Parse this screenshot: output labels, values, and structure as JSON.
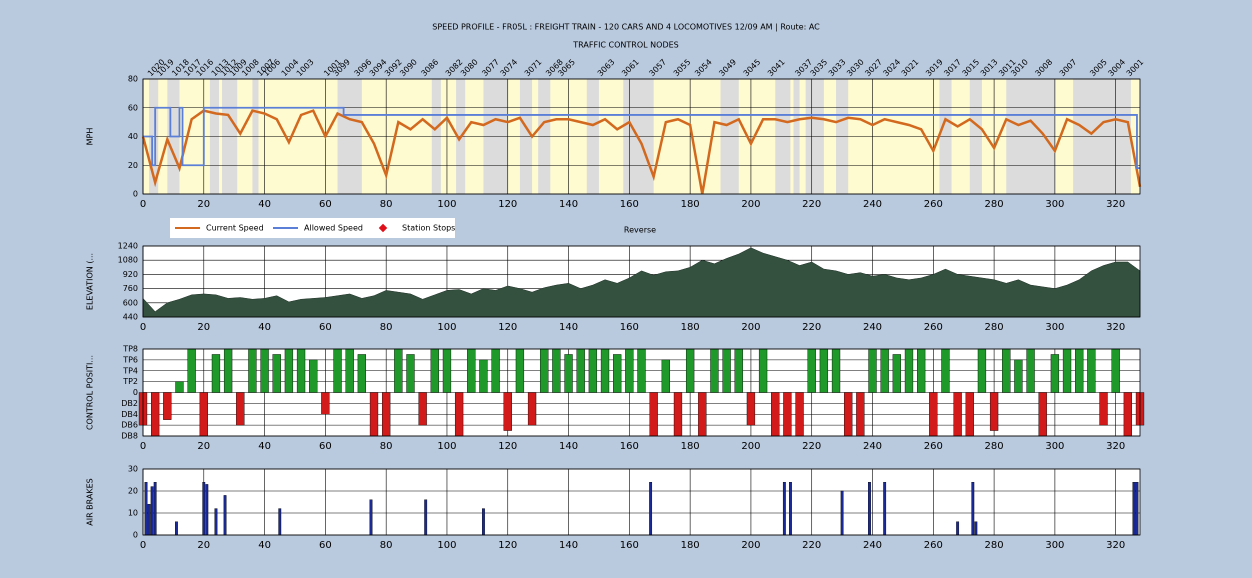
{
  "chart_data": [
    {
      "type": "line",
      "title": "SPEED PROFILE - FR05L : FREIGHT TRAIN - 120 CARS AND 4 LOCOMOTIVES 12/09 AM | Route: AC",
      "subtitle": "TRAFFIC CONTROL NODES",
      "ylabel": "MPH",
      "xlabel": "Reverse",
      "xlim": [
        0,
        328
      ],
      "xticks": [
        0,
        20,
        40,
        60,
        80,
        100,
        120,
        140,
        160,
        180,
        200,
        220,
        240,
        260,
        280,
        300,
        320
      ],
      "ylim": [
        0,
        80
      ],
      "yticks": [
        0,
        20,
        40,
        60,
        80
      ],
      "grid": true,
      "nodes": {
        "labels": [
          "1020",
          "1019",
          "1018",
          "1017",
          "1016",
          "1013",
          "1012",
          "1009",
          "1008",
          "1007",
          "1006",
          "1004",
          "1003",
          "1001",
          "3099",
          "3096",
          "3094",
          "3092",
          "3090",
          "3086",
          "3082",
          "3080",
          "3077",
          "3074",
          "3071",
          "3068",
          "3065",
          "3063",
          "3061",
          "3057",
          "3055",
          "3054",
          "3049",
          "3045",
          "3041",
          "3037",
          "3035",
          "3033",
          "3030",
          "3027",
          "3024",
          "3021",
          "3019",
          "3017",
          "3015",
          "3013",
          "3011",
          "3010",
          "3008",
          "3007",
          "3005",
          "3004",
          "3001"
        ],
        "x": [
          2,
          5,
          10,
          14,
          18,
          23,
          26,
          29,
          33,
          38,
          40,
          46,
          51,
          60,
          63,
          70,
          75,
          80,
          85,
          92,
          100,
          105,
          112,
          118,
          126,
          133,
          137,
          150,
          158,
          167,
          175,
          182,
          190,
          198,
          206,
          215,
          220,
          226,
          232,
          238,
          244,
          250,
          258,
          264,
          270,
          276,
          282,
          286,
          294,
          302,
          312,
          318,
          324
        ]
      },
      "gray_bands": [
        [
          2,
          5
        ],
        [
          8,
          12
        ],
        [
          22,
          25
        ],
        [
          26,
          31
        ],
        [
          36,
          38
        ],
        [
          64,
          72
        ],
        [
          95,
          98
        ],
        [
          103,
          106
        ],
        [
          112,
          120
        ],
        [
          124,
          128
        ],
        [
          130,
          134
        ],
        [
          146,
          150
        ],
        [
          158,
          168
        ],
        [
          190,
          196
        ],
        [
          208,
          213
        ],
        [
          214,
          216
        ],
        [
          218,
          224
        ],
        [
          228,
          232
        ],
        [
          262,
          266
        ],
        [
          272,
          276
        ],
        [
          284,
          300
        ],
        [
          306,
          325
        ]
      ],
      "series": [
        {
          "name": "Current Speed",
          "color": "#d2691e",
          "x": [
            0,
            4,
            8,
            12,
            16,
            20,
            24,
            28,
            32,
            36,
            40,
            44,
            48,
            52,
            56,
            60,
            64,
            68,
            72,
            76,
            80,
            84,
            88,
            92,
            96,
            100,
            104,
            108,
            112,
            116,
            120,
            124,
            128,
            132,
            136,
            140,
            144,
            148,
            152,
            156,
            160,
            164,
            168,
            172,
            176,
            180,
            184,
            188,
            192,
            196,
            200,
            204,
            208,
            212,
            216,
            220,
            224,
            228,
            232,
            236,
            240,
            244,
            248,
            252,
            256,
            260,
            264,
            268,
            272,
            276,
            280,
            284,
            288,
            292,
            296,
            300,
            304,
            308,
            312,
            316,
            320,
            324,
            328
          ],
          "values": [
            40,
            8,
            38,
            18,
            52,
            58,
            56,
            55,
            42,
            58,
            56,
            52,
            36,
            55,
            58,
            40,
            56,
            52,
            50,
            35,
            13,
            50,
            45,
            52,
            45,
            53,
            38,
            50,
            48,
            52,
            50,
            53,
            40,
            50,
            52,
            52,
            50,
            48,
            52,
            45,
            50,
            35,
            12,
            50,
            52,
            48,
            0,
            50,
            48,
            52,
            35,
            52,
            52,
            50,
            52,
            53,
            52,
            50,
            53,
            52,
            48,
            52,
            50,
            48,
            45,
            30,
            52,
            47,
            52,
            45,
            32,
            52,
            48,
            51,
            42,
            30,
            52,
            48,
            42,
            50,
            52,
            50,
            5
          ]
        },
        {
          "name": "Allowed Speed",
          "color": "#5b7fd6",
          "x": [
            0,
            3,
            3,
            4,
            4,
            9,
            9,
            12,
            12,
            13,
            13,
            20,
            20,
            66,
            66,
            327,
            327,
            328
          ],
          "values": [
            40,
            40,
            20,
            20,
            60,
            60,
            40,
            40,
            60,
            60,
            20,
            20,
            60,
            60,
            55,
            55,
            18,
            18
          ]
        },
        {
          "name": "Station Stops",
          "color": "#e0101a",
          "x": [],
          "values": []
        }
      ]
    },
    {
      "type": "area",
      "ylabel": "ELEVATION (...",
      "color": "#34503f",
      "xlim": [
        0,
        328
      ],
      "xticks": [
        0,
        20,
        40,
        60,
        80,
        100,
        120,
        140,
        160,
        180,
        200,
        220,
        240,
        260,
        280,
        300,
        320
      ],
      "ylim": [
        440,
        1240
      ],
      "yticks": [
        440,
        600,
        760,
        920,
        1080,
        1240
      ],
      "grid": true,
      "x": [
        0,
        4,
        8,
        12,
        16,
        20,
        24,
        28,
        32,
        36,
        40,
        44,
        48,
        52,
        56,
        60,
        64,
        68,
        72,
        76,
        80,
        84,
        88,
        92,
        96,
        100,
        104,
        108,
        112,
        116,
        120,
        124,
        128,
        132,
        136,
        140,
        144,
        148,
        152,
        156,
        160,
        164,
        168,
        172,
        176,
        180,
        184,
        188,
        192,
        196,
        200,
        204,
        208,
        212,
        216,
        220,
        224,
        228,
        232,
        236,
        240,
        244,
        248,
        252,
        256,
        260,
        264,
        268,
        272,
        276,
        280,
        284,
        288,
        292,
        296,
        300,
        304,
        308,
        312,
        316,
        320,
        324,
        328
      ],
      "values": [
        650,
        500,
        600,
        640,
        690,
        700,
        690,
        650,
        660,
        640,
        650,
        680,
        610,
        640,
        650,
        660,
        680,
        700,
        650,
        680,
        740,
        720,
        700,
        640,
        690,
        740,
        750,
        700,
        760,
        740,
        790,
        760,
        720,
        770,
        800,
        820,
        760,
        800,
        860,
        820,
        880,
        960,
        910,
        950,
        960,
        1000,
        1080,
        1040,
        1100,
        1150,
        1220,
        1160,
        1120,
        1080,
        1020,
        1060,
        980,
        960,
        920,
        940,
        900,
        920,
        880,
        860,
        880,
        920,
        980,
        920,
        900,
        880,
        860,
        820,
        860,
        800,
        780,
        760,
        800,
        860,
        960,
        1020,
        1060,
        1060,
        960
      ]
    },
    {
      "type": "bar",
      "ylabel": "CONTROL POSITI...",
      "color": "#1f9a2a",
      "negative_color": "#d21a1a",
      "xlim": [
        0,
        328
      ],
      "xticks": [
        0,
        20,
        40,
        60,
        80,
        100,
        120,
        140,
        160,
        180,
        200,
        220,
        240,
        260,
        280,
        300,
        320
      ],
      "ylim": [
        -8,
        8
      ],
      "grid": true,
      "yticks": [
        {
          "value": 8,
          "label": "TP8"
        },
        {
          "value": 6,
          "label": "TP6"
        },
        {
          "value": 4,
          "label": "TP4"
        },
        {
          "value": 2,
          "label": "TP2"
        },
        0,
        {
          "value": -2,
          "label": "DB2"
        },
        {
          "value": -4,
          "label": "DB4"
        },
        {
          "value": -6,
          "label": "DB6"
        },
        {
          "value": -8,
          "label": "DB8"
        }
      ],
      "x": [
        0,
        4,
        8,
        12,
        16,
        20,
        24,
        28,
        32,
        36,
        40,
        44,
        48,
        52,
        56,
        60,
        64,
        68,
        72,
        76,
        80,
        84,
        88,
        92,
        96,
        100,
        104,
        108,
        112,
        116,
        120,
        124,
        128,
        132,
        136,
        140,
        144,
        148,
        152,
        156,
        160,
        164,
        168,
        172,
        176,
        180,
        184,
        188,
        192,
        196,
        200,
        204,
        208,
        212,
        216,
        220,
        224,
        228,
        232,
        236,
        240,
        244,
        248,
        252,
        256,
        260,
        264,
        268,
        272,
        276,
        280,
        284,
        288,
        292,
        296,
        300,
        304,
        308,
        312,
        316,
        320,
        324,
        328
      ],
      "values": [
        -6,
        -8,
        -5,
        2,
        8,
        -8,
        7,
        8,
        -6,
        8,
        8,
        7,
        8,
        8,
        6,
        -4,
        8,
        8,
        7,
        -8,
        -8,
        8,
        7,
        -6,
        8,
        8,
        -8,
        8,
        6,
        8,
        -7,
        8,
        -6,
        8,
        8,
        7,
        8,
        8,
        8,
        7,
        8,
        8,
        -8,
        6,
        -8,
        8,
        -8,
        8,
        8,
        8,
        -6,
        8,
        -8,
        -8,
        -8,
        8,
        8,
        8,
        -8,
        -8,
        8,
        8,
        7,
        8,
        8,
        -8,
        8,
        -8,
        -8,
        8,
        -7,
        8,
        6,
        8,
        -8,
        7,
        8,
        8,
        8,
        -6,
        8,
        -8,
        -6
      ]
    },
    {
      "type": "bar",
      "ylabel": "AIR BRAKES",
      "color": "#1a2a9a",
      "xlim": [
        0,
        328
      ],
      "xticks": [
        0,
        20,
        40,
        60,
        80,
        100,
        120,
        140,
        160,
        180,
        200,
        220,
        240,
        260,
        280,
        300,
        320
      ],
      "ylim": [
        0,
        30
      ],
      "yticks": [
        0,
        10,
        20,
        30
      ],
      "grid": true,
      "x": [
        1,
        2,
        3,
        4,
        11,
        20,
        21,
        24,
        27,
        45,
        75,
        93,
        112,
        167,
        211,
        213,
        230,
        239,
        244,
        268,
        273,
        274,
        326,
        327
      ],
      "values": [
        24,
        14,
        22,
        24,
        6,
        24,
        23,
        12,
        18,
        12,
        16,
        16,
        12,
        24,
        24,
        24,
        20,
        24,
        24,
        6,
        24,
        6,
        24,
        24
      ]
    }
  ]
}
